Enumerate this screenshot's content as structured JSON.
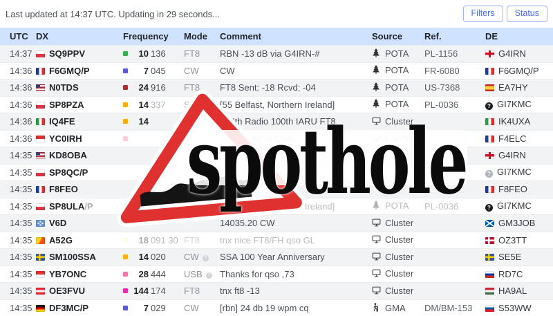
{
  "topbar": {
    "status_text": "Last updated at 14:37 UTC. Updating in 29 seconds...",
    "filters_label": "Filters",
    "status_label": "Status"
  },
  "watermark": {
    "text": "spothole",
    "triangle_color": "#e03131"
  },
  "colors": {
    "header_bg": "#cfe2ff",
    "stripe_bg": "#f1f3f5",
    "button_blue": "#4c6ef5"
  },
  "table": {
    "columns": [
      "UTC",
      "DX",
      "Frequency",
      "Mode",
      "Comment",
      "Source",
      "Ref.",
      "DE"
    ],
    "rows": [
      {
        "utc": "14:37",
        "dx_flag": "pl",
        "dx": "SQ9PPV",
        "band_color": "#37b24d",
        "mhz": "10",
        "khz": "136",
        "mode": "FT8",
        "mode_info": false,
        "comment": "RBN -13 dB via G4IRN-#",
        "source_icon": "tree",
        "source": "POTA",
        "ref": "PL-1156",
        "de_flag": "en",
        "de": "G4IRN",
        "fade": [],
        "dim": []
      },
      {
        "utc": "14:36",
        "dx_flag": "fr",
        "dx": "F6GMQ/P",
        "band_color": "#5b5bd6",
        "mhz": "7",
        "khz": "045",
        "mode": "CW",
        "mode_info": false,
        "comment": "CW",
        "source_icon": "tree",
        "source": "POTA",
        "ref": "FR-6080",
        "de_flag": "fr",
        "de": "F6GMQ/P",
        "fade": [],
        "dim": []
      },
      {
        "utc": "14:36",
        "dx_flag": "us",
        "dx": "N0TDS",
        "band_color": "#a83232",
        "mhz": "24",
        "khz": "916",
        "mode": "FT8",
        "mode_info": false,
        "comment": "FT8 Sent: -18 Rcvd: -04",
        "source_icon": "tree",
        "source": "POTA",
        "ref": "US-7368",
        "de_flag": "es",
        "de": "EA7HY",
        "fade": [],
        "dim": []
      },
      {
        "utc": "14:36",
        "dx_flag": "pl",
        "dx": "SP8PZA",
        "band_color": "#fab005",
        "mhz": "14",
        "khz": "337",
        "mode": "SSB",
        "mode_info": false,
        "comment": "[55 Belfast, Northern Ireland]",
        "source_icon": "tree",
        "source": "POTA",
        "ref": "PL-0036",
        "de_flag": "q",
        "de": "GI7KMC",
        "fade": [],
        "dim": [
          "khz",
          "mode"
        ]
      },
      {
        "utc": "14:36",
        "dx_flag": "it",
        "dx": "IQ4FE",
        "band_color": "#fab005",
        "mhz": "14",
        "khz": "",
        "mode": "FT8",
        "mode_info": false,
        "comment": "130th Radio 100th IARU FT8",
        "source_icon": "monitor",
        "source": "Cluster",
        "ref": "",
        "de_flag": "it",
        "de": "IK4UXA",
        "fade": [],
        "dim": [
          "mode"
        ]
      },
      {
        "utc": "14:36",
        "dx_flag": "id",
        "dx": "YC0IRH",
        "band_color": "#f277aa",
        "mhz": "",
        "khz": "",
        "mode": "",
        "mode_info": false,
        "comment": "ITL, but lot of QSB...",
        "source_icon": "monitor",
        "source": "Cluster",
        "ref": "",
        "de_flag": "fr",
        "de": "F4ELC",
        "fade": [
          "band",
          "comment",
          "source"
        ],
        "dim": []
      },
      {
        "utc": "14:35",
        "dx_flag": "us",
        "dx": "KD8OBA",
        "band_color": "",
        "mhz": "",
        "khz": "",
        "mode": "",
        "mode_info": false,
        "comment": "",
        "source_icon": "",
        "source": "",
        "ref": "",
        "de_flag": "en",
        "de": "G4IRN",
        "fade": [],
        "dim": []
      },
      {
        "utc": "14:35",
        "dx_flag": "pl",
        "dx": "SP8QC/P",
        "band_color": "",
        "mhz": "",
        "khz": "",
        "mode": "",
        "mode_info": false,
        "comment": "",
        "source_icon": "",
        "source": "",
        "ref": "",
        "de_flag": "qgray",
        "de": "GI7KMC",
        "fade": [],
        "dim": []
      },
      {
        "utc": "14:35",
        "dx_flag": "fr",
        "dx": "F8FEO",
        "band_color": "",
        "mhz": "",
        "khz": "",
        "mode": "",
        "mode_info": false,
        "comment": "",
        "source_icon": "",
        "source": "",
        "ref": "",
        "de_flag": "fr",
        "de": "F8FEO",
        "fade": [],
        "dim": []
      },
      {
        "utc": "14:35",
        "dx_flag": "pl",
        "dx": "SP8ULA",
        "dx_suffix": "/P",
        "band_color": "",
        "mhz": "",
        "khz": "",
        "mode": "",
        "mode_info": false,
        "comment": "[55 Belfast, Northern Ireland]",
        "source_icon": "tree",
        "source": "POTA",
        "ref": "PL-0036",
        "de_flag": "q",
        "de": "GI7KMC",
        "fade": [
          "comment",
          "source",
          "ref"
        ],
        "dim": []
      },
      {
        "utc": "14:35",
        "dx_flag": "fm",
        "dx": "V6D",
        "band_color": "",
        "mhz": "",
        "khz": "",
        "mode": "",
        "mode_info": false,
        "comment": "14035.20 CW",
        "source_icon": "monitor",
        "source": "Cluster",
        "ref": "",
        "de_flag": "scot",
        "de": "GM3JOB",
        "fade": [],
        "dim": []
      },
      {
        "utc": "14:35",
        "dx_flag": "bt",
        "dx": "A52G",
        "band_color": "#ffdf6b",
        "mhz": "18",
        "khz": "091 300",
        "mode": "FT8",
        "mode_info": false,
        "comment": "tnx nice FT8/FH qso GL",
        "source_icon": "monitor",
        "source": "Cluster",
        "ref": "",
        "de_flag": "dk",
        "de": "OZ3TT",
        "fade": [
          "band",
          "freq",
          "mode",
          "comment"
        ],
        "dim": []
      },
      {
        "utc": "14:35",
        "dx_flag": "se",
        "dx": "SM100SSA",
        "band_color": "#fab005",
        "mhz": "14",
        "khz": "020",
        "mode": "CW",
        "mode_info": true,
        "comment": "SSA 100 Year Anniversary",
        "source_icon": "monitor",
        "source": "Cluster",
        "ref": "",
        "de_flag": "se",
        "de": "SE5E",
        "fade": [],
        "dim": []
      },
      {
        "utc": "14:35",
        "dx_flag": "id",
        "dx": "YB7ONC",
        "band_color": "#f277aa",
        "mhz": "28",
        "khz": "444",
        "mode": "USB",
        "mode_info": true,
        "comment": "Thanks for qso ,73",
        "source_icon": "monitor",
        "source": "Cluster",
        "ref": "",
        "de_flag": "ru",
        "de": "RD7C",
        "fade": [],
        "dim": []
      },
      {
        "utc": "14:35",
        "dx_flag": "at",
        "dx": "OE3FVU",
        "band_color": "#ef2bb4",
        "mhz": "144",
        "khz": "174",
        "mode": "FT8",
        "mode_info": false,
        "comment": "tnx ft8 -13",
        "source_icon": "monitor",
        "source": "Cluster",
        "ref": "",
        "de_flag": "hu",
        "de": "HA9AL",
        "fade": [],
        "dim": []
      },
      {
        "utc": "14:35",
        "dx_flag": "de",
        "dx": "DF3MC/P",
        "band_color": "#5b5bd6",
        "mhz": "7",
        "khz": "029",
        "mode": "CW",
        "mode_info": false,
        "comment": "[rbn] 24 db 19 wpm cq",
        "source_icon": "hiker",
        "source": "GMA",
        "ref": "DM/BM-153",
        "de_flag": "si",
        "de": "S53WW",
        "fade": [],
        "dim": []
      }
    ]
  }
}
